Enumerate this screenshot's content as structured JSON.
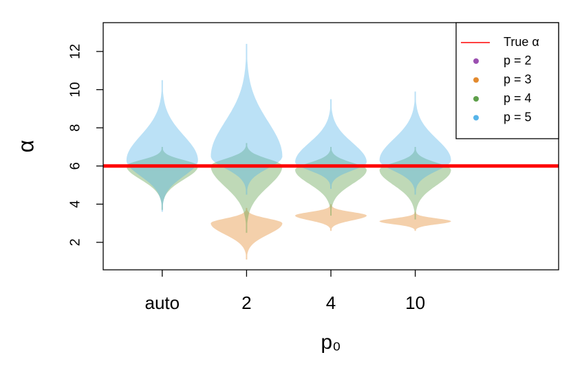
{
  "chart_data": {
    "type": "violin",
    "x_label": "p₀",
    "y_label": "α",
    "categories": [
      "auto",
      "2",
      "4",
      "10"
    ],
    "xlim": [
      0.3,
      5.7
    ],
    "ylim": [
      0.56,
      13.51
    ],
    "yticks": [
      2,
      4,
      6,
      8,
      10,
      12
    ],
    "reference_line": {
      "name": "True α",
      "value": 6,
      "color": "#ff0000"
    },
    "legend": "top-right",
    "series": [
      {
        "name": "p = 2",
        "color": "#9b4fb0",
        "violins": [
          null,
          null,
          null,
          null
        ]
      },
      {
        "name": "p = 3",
        "color": "#e38a2e",
        "violins": [
          null,
          {
            "min": 1.1,
            "max": 3.8,
            "center": 3.0
          },
          {
            "min": 2.6,
            "max": 4.0,
            "center": 3.4
          },
          {
            "min": 2.6,
            "max": 3.6,
            "center": 3.1
          }
        ]
      },
      {
        "name": "p = 4",
        "color": "#5e9f4a",
        "violins": [
          {
            "min": 3.7,
            "max": 7.0,
            "center": 6.0
          },
          {
            "min": 2.5,
            "max": 7.2,
            "center": 6.0
          },
          {
            "min": 3.4,
            "max": 7.0,
            "center": 5.8
          },
          {
            "min": 3.2,
            "max": 7.0,
            "center": 5.8
          }
        ]
      },
      {
        "name": "p = 5",
        "color": "#56b4e9",
        "violins": [
          {
            "min": 3.6,
            "max": 10.5,
            "center": 6.3
          },
          {
            "min": 4.5,
            "max": 12.4,
            "center": 6.5
          },
          {
            "min": 4.8,
            "max": 9.5,
            "center": 6.2
          },
          {
            "min": 4.5,
            "max": 9.9,
            "center": 6.3
          }
        ]
      }
    ]
  }
}
